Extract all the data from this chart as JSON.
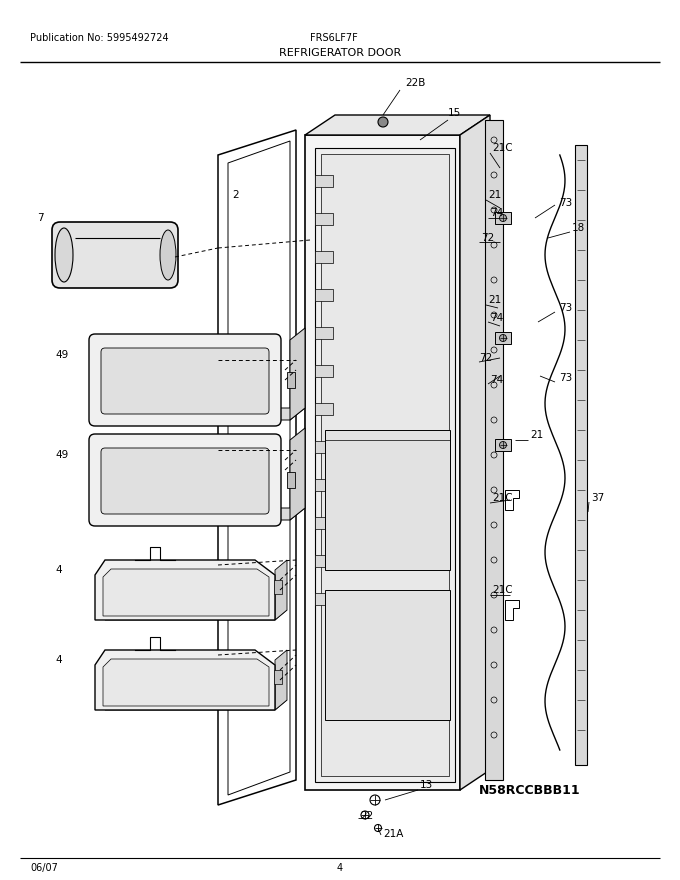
{
  "title": "REFRIGERATOR DOOR",
  "pub_no": "Publication No: 5995492724",
  "model": "FRS6LF7F",
  "part_no": "N58RCCBBB11",
  "date": "06/07",
  "page": "4",
  "bg_color": "#ffffff",
  "text_color": "#000000",
  "line_color": "#000000",
  "fig_width": 6.8,
  "fig_height": 8.8,
  "dpi": 100
}
